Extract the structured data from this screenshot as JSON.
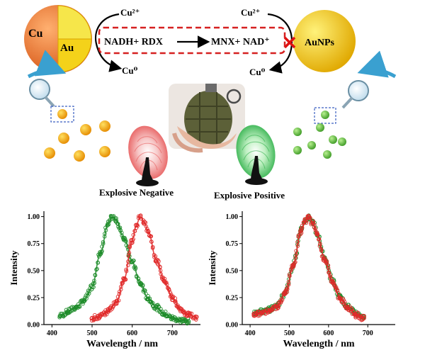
{
  "top": {
    "core_label": "Cu",
    "inner_label": "Au",
    "right_particle_label": "AuNPs",
    "left_in_ion": "Cu²⁺",
    "left_out_ion": "Cu⁰",
    "right_in_ion": "Cu²⁺",
    "right_out_ion": "Cu⁰",
    "reaction_left": "NADH+ RDX",
    "reaction_right": "MNX+ NAD⁺",
    "negative_label": "Explosive Negative",
    "positive_label": "Explosive Positive"
  },
  "colors": {
    "green_series": "#1e8c2a",
    "red_series": "#e02a2a",
    "dashed_box": "#d62020",
    "cross": "#e01010",
    "cu_sphere": "#e8742a",
    "au_wedge": "#f4d21a",
    "aunp_sphere": "#f2c400",
    "left_dots": "#f2a500",
    "right_dots": "#55b030"
  },
  "chart_data": [
    {
      "type": "line",
      "panel": "left",
      "xlabel": "Wavelength / nm",
      "ylabel": "Intensity",
      "xlim": [
        380,
        770
      ],
      "ylim": [
        0,
        1.05
      ],
      "xticks": [
        400,
        500,
        600,
        700
      ],
      "yticks": [
        0.0,
        0.25,
        0.5,
        0.75,
        1.0
      ],
      "series": [
        {
          "color": "green",
          "x": [
            420,
            440,
            460,
            480,
            500,
            520,
            540,
            550,
            560,
            580,
            600,
            620,
            640,
            660,
            680,
            700,
            720,
            740
          ],
          "y": [
            0.08,
            0.12,
            0.16,
            0.22,
            0.35,
            0.65,
            0.93,
            1.0,
            0.96,
            0.8,
            0.58,
            0.38,
            0.24,
            0.16,
            0.1,
            0.06,
            0.04,
            0.03
          ]
        },
        {
          "color": "red",
          "x": [
            500,
            520,
            540,
            560,
            580,
            600,
            610,
            620,
            630,
            640,
            660,
            680,
            700,
            720,
            740,
            760
          ],
          "y": [
            0.06,
            0.08,
            0.12,
            0.2,
            0.42,
            0.78,
            0.92,
            1.0,
            0.95,
            0.86,
            0.6,
            0.4,
            0.25,
            0.14,
            0.09,
            0.07
          ]
        }
      ]
    },
    {
      "type": "line",
      "panel": "right",
      "xlabel": "Wavelength / nm",
      "ylabel": "Intensity",
      "xlim": [
        380,
        770
      ],
      "ylim": [
        0,
        1.05
      ],
      "xticks": [
        400,
        500,
        600,
        700
      ],
      "yticks": [
        0.0,
        0.25,
        0.5,
        0.75,
        1.0
      ],
      "series": [
        {
          "color": "green",
          "x": [
            410,
            430,
            450,
            470,
            490,
            510,
            530,
            540,
            550,
            560,
            570,
            590,
            610,
            630,
            650,
            670,
            690
          ],
          "y": [
            0.1,
            0.12,
            0.14,
            0.18,
            0.3,
            0.55,
            0.88,
            0.97,
            1.0,
            0.95,
            0.85,
            0.62,
            0.4,
            0.25,
            0.16,
            0.1,
            0.07
          ]
        },
        {
          "color": "red",
          "x": [
            410,
            430,
            450,
            470,
            490,
            510,
            530,
            540,
            550,
            560,
            570,
            590,
            610,
            630,
            650,
            670,
            690
          ],
          "y": [
            0.09,
            0.11,
            0.13,
            0.17,
            0.29,
            0.54,
            0.87,
            0.96,
            0.99,
            0.94,
            0.84,
            0.61,
            0.39,
            0.24,
            0.15,
            0.09,
            0.06
          ]
        }
      ]
    }
  ]
}
